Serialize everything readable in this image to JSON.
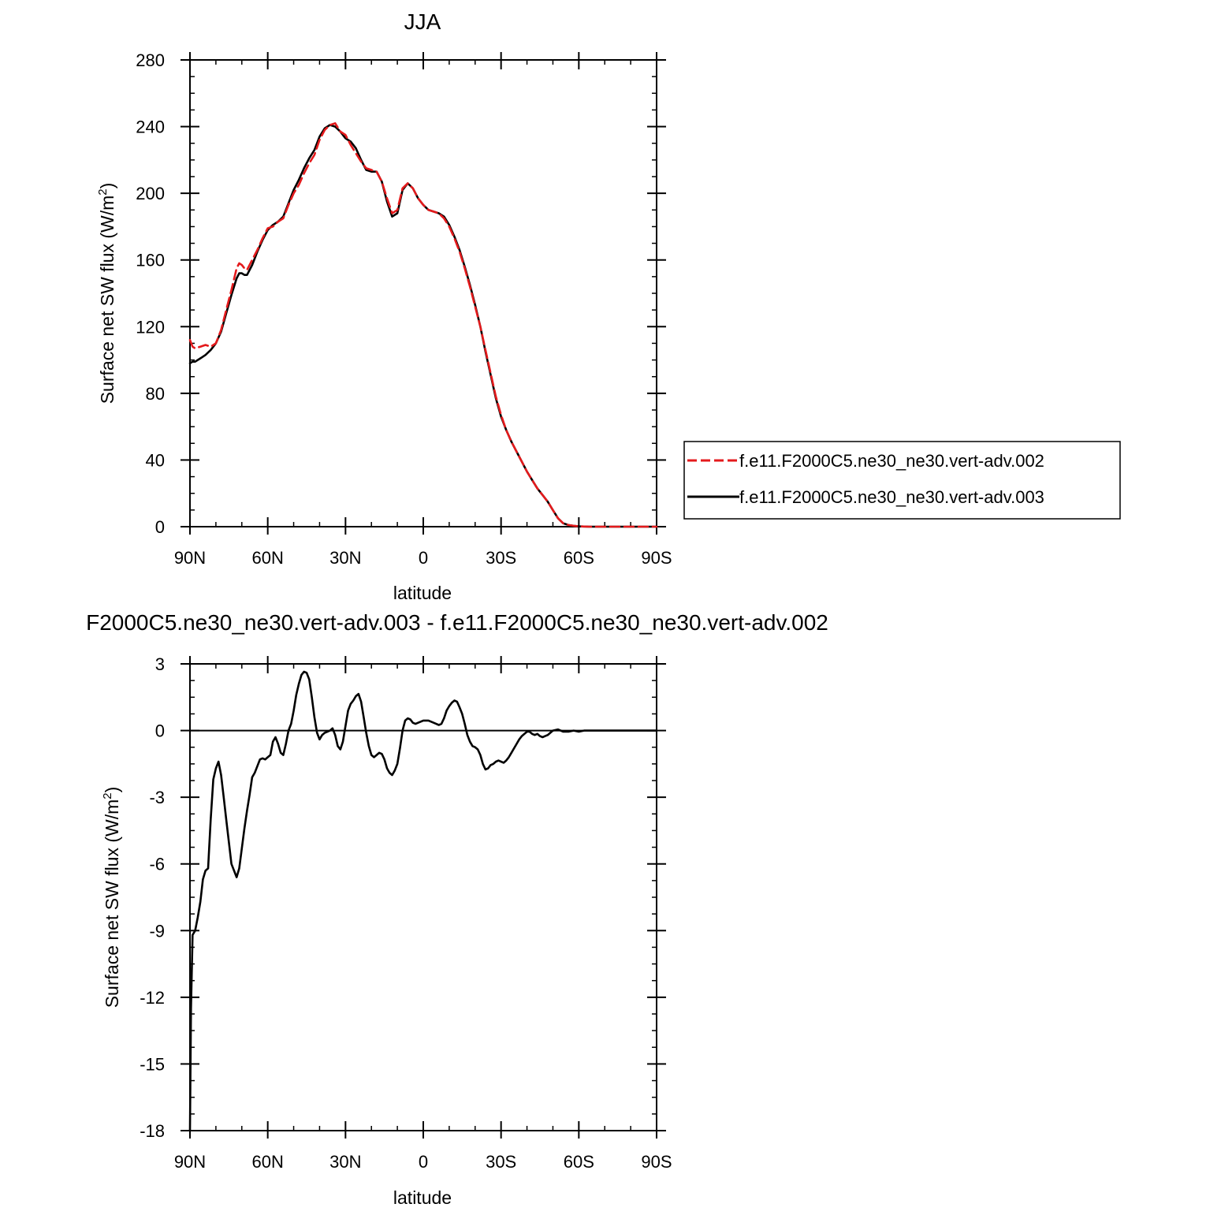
{
  "chart_data": [
    {
      "type": "line",
      "title": "JJA",
      "xlabel": "latitude",
      "ylabel": "Surface net SW flux (W/m",
      "ylabel_superscript": "2",
      "ylabel_suffix": ")",
      "xlim": [
        90,
        -90
      ],
      "ylim": [
        0,
        280
      ],
      "x_ticks": [
        90,
        60,
        30,
        0,
        -30,
        -60,
        -90
      ],
      "x_tick_labels": [
        "90N",
        "60N",
        "30N",
        "0",
        "30S",
        "60S",
        "90S"
      ],
      "y_ticks": [
        0,
        40,
        80,
        120,
        160,
        200,
        240,
        280
      ],
      "y_tick_labels": [
        "0",
        "40",
        "80",
        "120",
        "160",
        "200",
        "240",
        "280"
      ],
      "grid": false,
      "legend_position": "right",
      "series": [
        {
          "name": "f.e11.F2000C5.ne30_ne30.vert-adv.002",
          "color": "#e41a1c",
          "dash": "dashed",
          "x": [
            90,
            89,
            88,
            86,
            84,
            82,
            80,
            78,
            76,
            74,
            72,
            71,
            70,
            69,
            68,
            66,
            64,
            62,
            60,
            58,
            56,
            54,
            52,
            50,
            48,
            46,
            44,
            42,
            40,
            38,
            36,
            34,
            32,
            30,
            28,
            26,
            24,
            22,
            20,
            18,
            16,
            14,
            12,
            10,
            8,
            6,
            4,
            2,
            0,
            -2,
            -4,
            -6,
            -8,
            -10,
            -12,
            -14,
            -16,
            -18,
            -20,
            -22,
            -24,
            -26,
            -28,
            -30,
            -32,
            -34,
            -36,
            -38,
            -40,
            -42,
            -44,
            -46,
            -48,
            -50,
            -52,
            -54,
            -56,
            -58,
            -60,
            -62,
            -64,
            -66,
            -68,
            -70,
            -75,
            -80,
            -85,
            -90
          ],
          "y": [
            112,
            108,
            107,
            108,
            109,
            108,
            110,
            118,
            130,
            142,
            155,
            158,
            157,
            155,
            154,
            160,
            166,
            173,
            179,
            180,
            183,
            185,
            193,
            200,
            205,
            212,
            218,
            223,
            232,
            238,
            241,
            242,
            237,
            235,
            229,
            224,
            219,
            215,
            214,
            213,
            207,
            197,
            188,
            190,
            203,
            206,
            203,
            197,
            193,
            190,
            189,
            188,
            185,
            180,
            173,
            165,
            155,
            144,
            132,
            120,
            106,
            92,
            78,
            67,
            58,
            51,
            45,
            39,
            33,
            28,
            23,
            19,
            15,
            10,
            5,
            2,
            1,
            0.5,
            0.2,
            0.1,
            0,
            0,
            0,
            0,
            0,
            0,
            0,
            0
          ]
        },
        {
          "name": "f.e11.F2000C5.ne30_ne30.vert-adv.003",
          "color": "#000000",
          "dash": "solid",
          "x": [
            90,
            89,
            88,
            86,
            84,
            82,
            80,
            78,
            76,
            74,
            72,
            71,
            70,
            69,
            68,
            66,
            64,
            62,
            60,
            58,
            56,
            54,
            52,
            50,
            48,
            46,
            44,
            42,
            40,
            38,
            36,
            34,
            32,
            30,
            28,
            26,
            24,
            22,
            20,
            18,
            16,
            14,
            12,
            10,
            8,
            6,
            4,
            2,
            0,
            -2,
            -4,
            -6,
            -8,
            -10,
            -12,
            -14,
            -16,
            -18,
            -20,
            -22,
            -24,
            -26,
            -28,
            -30,
            -32,
            -34,
            -36,
            -38,
            -40,
            -42,
            -44,
            -46,
            -48,
            -50,
            -52,
            -54,
            -56,
            -58,
            -60,
            -62,
            -64,
            -66,
            -68,
            -70,
            -75,
            -80,
            -85,
            -90
          ],
          "y": [
            98,
            99,
            99,
            101,
            103,
            106,
            110,
            117,
            128,
            139,
            149,
            152,
            152,
            151,
            151,
            157,
            165,
            172,
            178,
            181,
            183,
            186,
            194,
            202,
            208,
            215,
            221,
            226,
            234,
            239,
            241,
            240,
            237,
            233,
            231,
            227,
            220,
            214,
            213,
            213,
            207,
            195,
            186,
            188,
            202,
            206,
            203,
            197,
            193,
            190,
            189,
            188,
            186,
            181,
            174,
            166,
            156,
            145,
            133,
            120,
            105,
            91,
            77,
            66,
            58,
            51,
            45,
            39,
            33,
            28,
            23,
            19,
            15,
            10,
            5,
            2,
            1,
            0.5,
            0.2,
            0.1,
            0,
            0,
            0,
            0,
            0,
            0,
            0,
            0
          ]
        }
      ]
    },
    {
      "type": "line",
      "title": "F2000C5.ne30_ne30.vert-adv.003 - f.e11.F2000C5.ne30_ne30.vert-adv.002",
      "xlabel": "latitude",
      "ylabel": "Surface net SW flux (W/m",
      "ylabel_superscript": "2",
      "ylabel_suffix": ")",
      "xlim": [
        90,
        -90
      ],
      "ylim": [
        -18,
        3
      ],
      "x_ticks": [
        90,
        60,
        30,
        0,
        -30,
        -60,
        -90
      ],
      "x_tick_labels": [
        "90N",
        "60N",
        "30N",
        "0",
        "30S",
        "60S",
        "90S"
      ],
      "y_ticks": [
        -18,
        -15,
        -12,
        -9,
        -6,
        -3,
        0,
        3
      ],
      "y_tick_labels": [
        "-18",
        "-15",
        "-12",
        "-9",
        "-6",
        "-3",
        "0",
        "3"
      ],
      "grid": false,
      "reference_line": 0,
      "series": [
        {
          "color": "#000000",
          "dash": "solid",
          "x": [
            90,
            89.6,
            89,
            88,
            87,
            86,
            85,
            84,
            83,
            82,
            81,
            80,
            79,
            78,
            77,
            76,
            75,
            74,
            73,
            72,
            71,
            70,
            69,
            68,
            67,
            66,
            65,
            64,
            63,
            62,
            61,
            60,
            59,
            58,
            57,
            56,
            55,
            54,
            53,
            52,
            51,
            50,
            49,
            48,
            47,
            46,
            45,
            44,
            43,
            42,
            41,
            40,
            39,
            38,
            37,
            36,
            35,
            34,
            33,
            32,
            31,
            30,
            29,
            28,
            27,
            26,
            25,
            24,
            23,
            22,
            21,
            20,
            19,
            18,
            17,
            16,
            15,
            14,
            13,
            12,
            11,
            10,
            9,
            8,
            7,
            6,
            5,
            4,
            3,
            2,
            1,
            0,
            -1,
            -2,
            -3,
            -4,
            -5,
            -6,
            -7,
            -8,
            -9,
            -10,
            -11,
            -12,
            -13,
            -14,
            -15,
            -16,
            -17,
            -18,
            -19,
            -20,
            -21,
            -22,
            -23,
            -24,
            -25,
            -26,
            -27,
            -28,
            -29,
            -30,
            -31,
            -32,
            -33,
            -34,
            -35,
            -36,
            -37,
            -38,
            -39,
            -40,
            -41,
            -42,
            -43,
            -44,
            -45,
            -46,
            -47,
            -48,
            -49,
            -50,
            -52,
            -54,
            -56,
            -58,
            -60,
            -62,
            -64,
            -66,
            -68,
            -70,
            -75,
            -80,
            -85,
            -90
          ],
          "y": [
            -18,
            -12.5,
            -9.2,
            -9,
            -8.4,
            -7.7,
            -6.7,
            -6.3,
            -6.2,
            -4,
            -2.2,
            -1.7,
            -1.4,
            -2,
            -3,
            -4,
            -5,
            -6,
            -6.3,
            -6.6,
            -6.2,
            -5.3,
            -4.4,
            -3.6,
            -2.9,
            -2.1,
            -1.9,
            -1.6,
            -1.3,
            -1.25,
            -1.3,
            -1.2,
            -1.1,
            -0.5,
            -0.3,
            -0.6,
            -1,
            -1.1,
            -0.6,
            0,
            0.3,
            0.9,
            1.6,
            2.1,
            2.5,
            2.65,
            2.6,
            2.3,
            1.5,
            0.6,
            -0.1,
            -0.4,
            -0.2,
            -0.1,
            -0.05,
            0,
            0.1,
            -0.2,
            -0.7,
            -0.85,
            -0.5,
            0.2,
            0.9,
            1.2,
            1.35,
            1.55,
            1.65,
            1.3,
            0.6,
            -0.1,
            -0.7,
            -1.1,
            -1.2,
            -1.1,
            -1,
            -1.05,
            -1.3,
            -1.7,
            -1.9,
            -2,
            -1.8,
            -1.5,
            -0.8,
            0,
            0.45,
            0.55,
            0.5,
            0.35,
            0.3,
            0.35,
            0.4,
            0.45,
            0.45,
            0.45,
            0.4,
            0.35,
            0.3,
            0.25,
            0.3,
            0.55,
            0.9,
            1.1,
            1.25,
            1.35,
            1.3,
            1.05,
            0.75,
            0.3,
            -0.2,
            -0.5,
            -0.7,
            -0.75,
            -0.85,
            -1.1,
            -1.5,
            -1.75,
            -1.7,
            -1.55,
            -1.5,
            -1.4,
            -1.35,
            -1.4,
            -1.45,
            -1.35,
            -1.2,
            -1,
            -0.8,
            -0.6,
            -0.4,
            -0.25,
            -0.15,
            -0.05,
            -0.05,
            -0.15,
            -0.2,
            -0.15,
            -0.25,
            -0.3,
            -0.25,
            -0.2,
            -0.1,
            0,
            0.05,
            -0.05,
            -0.05,
            0,
            -0.05,
            0,
            0,
            0,
            0,
            0,
            0,
            0,
            0,
            0
          ]
        }
      ]
    }
  ]
}
